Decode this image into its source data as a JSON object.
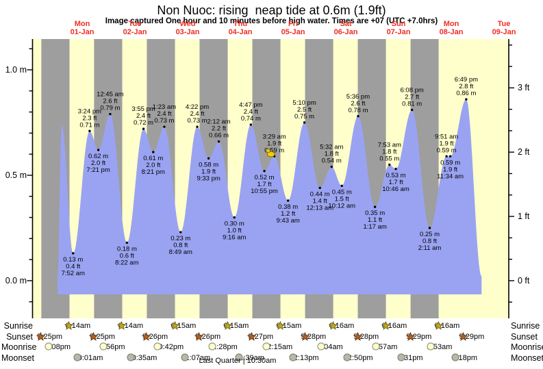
{
  "title": "Non Nuoc: rising  neap tide at 0.6m (1.9ft)",
  "subtitle": "Image captured One hour and 10 minutes before high water. Times are +07 (UTC +7.0hrs)",
  "moon_phase": {
    "text": "Last Quarter | 10:30am"
  },
  "colors": {
    "background": "#ffffff",
    "day_band": "#ffffcc",
    "night_band": "#9e9e9e",
    "tide_fill": "#9aa3f1",
    "date_label": "#ee2e24",
    "annotation": "#000000",
    "marker": "#f0d000",
    "sunrise_star": "#c2aa1e",
    "sunrise_star_stroke": "#6d5f10",
    "sunset_star": "#b5611d",
    "sunset_star_stroke": "#5d3410",
    "moonrise_circle": "#ffffcc",
    "moonrise_stroke": "#999988",
    "moonset_circle": "#b8b8aa",
    "moonset_stroke": "#88887a"
  },
  "days": [
    {
      "weekday": "Mon",
      "date": "01-Jan"
    },
    {
      "weekday": "Tue",
      "date": "02-Jan"
    },
    {
      "weekday": "Wed",
      "date": "03-Jan"
    },
    {
      "weekday": "Thu",
      "date": "04-Jan"
    },
    {
      "weekday": "Fri",
      "date": "05-Jan"
    },
    {
      "weekday": "Sat",
      "date": "06-Jan"
    },
    {
      "weekday": "Sun",
      "date": "07-Jan"
    },
    {
      "weekday": "Mon",
      "date": "08-Jan"
    },
    {
      "weekday": "Tue",
      "date": "09-Jan"
    }
  ],
  "axes": {
    "left_labels": [
      {
        "text": "1.0 m",
        "value_m": 1.0
      },
      {
        "text": "0.5 m",
        "value_m": 0.5
      },
      {
        "text": "0.0 m",
        "value_m": 0.0
      }
    ],
    "right_labels": [
      {
        "text": "3 ft",
        "value_ft": 3
      },
      {
        "text": "2 ft",
        "value_ft": 2
      },
      {
        "text": "1 ft",
        "value_ft": 1
      },
      {
        "text": "0 ft",
        "value_ft": 0
      }
    ]
  },
  "chart_data": {
    "type": "area",
    "title": "Non Nuoc: rising  neap tide at 0.6m (1.9ft)",
    "categories": [
      "Mon 01-Jan",
      "Tue 02-Jan",
      "Wed 03-Jan",
      "Thu 04-Jan",
      "Fri 05-Jan",
      "Sat 06-Jan",
      "Sun 07-Jan",
      "Mon 08-Jan",
      "Tue 09-Jan"
    ],
    "ylabel_left": "height (m)",
    "ylabel_right": "height (ft)",
    "ylim_m": [
      -0.15,
      1.15
    ],
    "legend": "none",
    "grid": "off",
    "tide_extremes": [
      {
        "type": "low",
        "time": "7:52 am",
        "t_hours": 7.867,
        "height_m": 0.13,
        "height_ft": 0.4
      },
      {
        "type": "high",
        "time": "3:24 pm",
        "t_hours": 15.4,
        "height_m": 0.71,
        "height_ft": 2.3
      },
      {
        "type": "low",
        "time": "7:21 pm",
        "t_hours": 19.35,
        "height_m": 0.62,
        "height_ft": 2.0
      },
      {
        "type": "high",
        "time": "12:45 am",
        "t_hours": 24.75,
        "height_m": 0.79,
        "height_ft": 2.6
      },
      {
        "type": "low",
        "time": "8:22 am",
        "t_hours": 32.367,
        "height_m": 0.18,
        "height_ft": 0.6
      },
      {
        "type": "high",
        "time": "3:55 pm",
        "t_hours": 39.917,
        "height_m": 0.72,
        "height_ft": 2.4
      },
      {
        "type": "low",
        "time": "8:21 pm",
        "t_hours": 44.35,
        "height_m": 0.61,
        "height_ft": 2.0
      },
      {
        "type": "high",
        "time": "1:23 am",
        "t_hours": 49.383,
        "height_m": 0.73,
        "height_ft": 2.4
      },
      {
        "type": "low",
        "time": "8:49 am",
        "t_hours": 56.817,
        "height_m": 0.23,
        "height_ft": 0.8
      },
      {
        "type": "high",
        "time": "4:22 pm",
        "t_hours": 64.367,
        "height_m": 0.73,
        "height_ft": 2.4
      },
      {
        "type": "low",
        "time": "9:33 pm",
        "t_hours": 69.55,
        "height_m": 0.58,
        "height_ft": 1.9
      },
      {
        "type": "high",
        "time": "2:12 am",
        "t_hours": 74.2,
        "height_m": 0.66,
        "height_ft": 2.2
      },
      {
        "type": "low",
        "time": "9:16 am",
        "t_hours": 81.267,
        "height_m": 0.3,
        "height_ft": 1.0
      },
      {
        "type": "high",
        "time": "4:47 pm",
        "t_hours": 88.783,
        "height_m": 0.74,
        "height_ft": 2.4
      },
      {
        "type": "low",
        "time": "10:55 pm",
        "t_hours": 94.917,
        "height_m": 0.52,
        "height_ft": 1.7
      },
      {
        "type": "high",
        "time": "3:29 am",
        "t_hours": 99.483,
        "height_m": 0.59,
        "height_ft": 1.9,
        "current_marker": true
      },
      {
        "type": "low",
        "time": "9:43 am",
        "t_hours": 105.717,
        "height_m": 0.38,
        "height_ft": 1.2
      },
      {
        "type": "high",
        "time": "5:10 pm",
        "t_hours": 113.167,
        "height_m": 0.75,
        "height_ft": 2.5
      },
      {
        "type": "low",
        "time": "12:13 am",
        "t_hours": 120.217,
        "height_m": 0.44,
        "height_ft": 1.4
      },
      {
        "type": "high",
        "time": "5:32 am",
        "t_hours": 125.533,
        "height_m": 0.54,
        "height_ft": 1.8
      },
      {
        "type": "low",
        "time": "10:12 am",
        "t_hours": 130.2,
        "height_m": 0.45,
        "height_ft": 1.5
      },
      {
        "type": "high",
        "time": "5:36 pm",
        "t_hours": 137.6,
        "height_m": 0.78,
        "height_ft": 2.6
      },
      {
        "type": "low",
        "time": "1:17 am",
        "t_hours": 145.283,
        "height_m": 0.35,
        "height_ft": 1.1
      },
      {
        "type": "high",
        "time": "7:53 am",
        "t_hours": 151.883,
        "height_m": 0.55,
        "height_ft": 1.8
      },
      {
        "type": "low",
        "time": "10:46 am",
        "t_hours": 154.767,
        "height_m": 0.53,
        "height_ft": 1.7
      },
      {
        "type": "high",
        "time": "6:08 pm",
        "t_hours": 162.133,
        "height_m": 0.81,
        "height_ft": 2.7
      },
      {
        "type": "low",
        "time": "2:11 am",
        "t_hours": 170.183,
        "height_m": 0.25,
        "height_ft": 0.8
      },
      {
        "type": "high",
        "time": "9:51 am",
        "t_hours": 177.85,
        "height_m": 0.59,
        "height_ft": 1.9
      },
      {
        "type": "low",
        "time": "11:34 am",
        "t_hours": 179.567,
        "height_m": 0.59,
        "height_ft": 1.9
      },
      {
        "type": "high",
        "time": "6:49 pm",
        "t_hours": 186.817,
        "height_m": 0.86,
        "height_ft": 2.8
      }
    ],
    "curve_anchors": [
      {
        "t_hours": 0.8,
        "height_m": 0.02
      },
      {
        "t_hours": 2.65,
        "height_m": 0.74
      },
      {
        "t_hours": 193.8,
        "height_m": 0.02
      }
    ]
  },
  "astro": {
    "rows": [
      {
        "name": "Sunrise",
        "icon": "sunrise-star-icon",
        "events": [
          {
            "time": "6:14am",
            "day": 0,
            "hour": 6.233
          },
          {
            "time": "6:14am",
            "day": 1,
            "hour": 6.233
          },
          {
            "time": "6:15am",
            "day": 2,
            "hour": 6.25
          },
          {
            "time": "6:15am",
            "day": 3,
            "hour": 6.25
          },
          {
            "time": "6:15am",
            "day": 4,
            "hour": 6.25
          },
          {
            "time": "6:16am",
            "day": 5,
            "hour": 6.267
          },
          {
            "time": "6:16am",
            "day": 6,
            "hour": 6.267
          },
          {
            "time": "6:16am",
            "day": 7,
            "hour": 6.267
          }
        ]
      },
      {
        "name": "Sunset",
        "icon": "sunset-star-icon",
        "events": [
          {
            "time": "5:25pm",
            "day": -1,
            "hour": 17.417
          },
          {
            "time": "5:25pm",
            "day": 0,
            "hour": 17.417
          },
          {
            "time": "5:26pm",
            "day": 1,
            "hour": 17.433
          },
          {
            "time": "5:26pm",
            "day": 2,
            "hour": 17.433
          },
          {
            "time": "5:27pm",
            "day": 3,
            "hour": 17.45
          },
          {
            "time": "5:28pm",
            "day": 4,
            "hour": 17.467
          },
          {
            "time": "5:28pm",
            "day": 5,
            "hour": 17.467
          },
          {
            "time": "5:29pm",
            "day": 6,
            "hour": 17.483
          },
          {
            "time": "5:29pm",
            "day": 7,
            "hour": 17.483
          }
        ]
      },
      {
        "name": "Moonrise",
        "icon": "moonrise-icon",
        "events": [
          {
            "time": "9:08pm",
            "day": -1,
            "hour": 21.133
          },
          {
            "time": "9:56pm",
            "day": 0,
            "hour": 21.933
          },
          {
            "time": "10:42pm",
            "day": 1,
            "hour": 22.7
          },
          {
            "time": "11:28pm",
            "day": 2,
            "hour": 23.467
          },
          {
            "time": "12:15am",
            "day": 4,
            "hour": 0.25
          },
          {
            "time": "1:04am",
            "day": 5,
            "hour": 1.067
          },
          {
            "time": "1:57am",
            "day": 6,
            "hour": 1.95
          },
          {
            "time": "2:53am",
            "day": 7,
            "hour": 2.883
          }
        ]
      },
      {
        "name": "Moonset",
        "icon": "moonset-icon",
        "events": [
          {
            "time": "10:01am",
            "day": 0,
            "hour": 10.017
          },
          {
            "time": "10:35am",
            "day": 1,
            "hour": 10.583
          },
          {
            "time": "11:07am",
            "day": 2,
            "hour": 11.117
          },
          {
            "time": "11:39am",
            "day": 3,
            "hour": 11.65
          },
          {
            "time": "12:13pm",
            "day": 4,
            "hour": 12.217
          },
          {
            "time": "12:50pm",
            "day": 5,
            "hour": 12.833
          },
          {
            "time": "1:31pm",
            "day": 6,
            "hour": 13.517
          },
          {
            "time": "2:18pm",
            "day": 7,
            "hour": 14.3
          }
        ]
      }
    ]
  }
}
